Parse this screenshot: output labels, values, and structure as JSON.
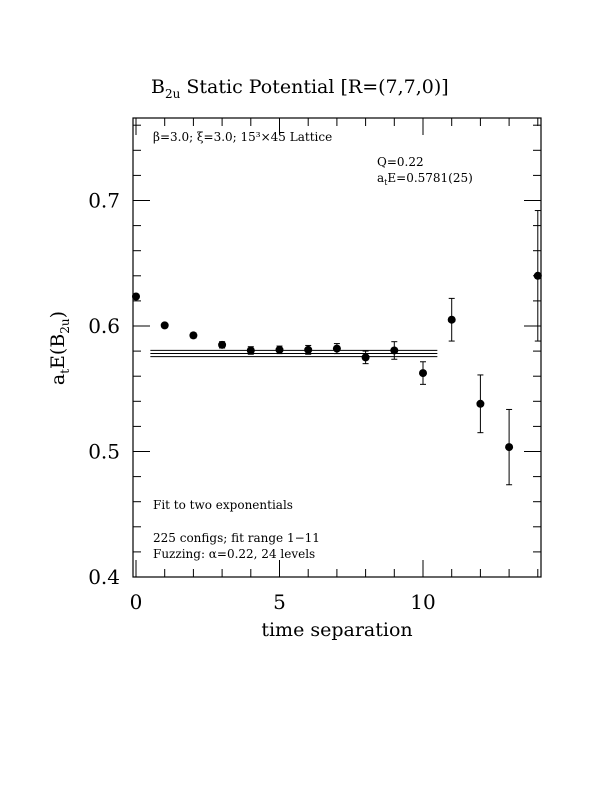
{
  "chart_data": {
    "type": "scatter",
    "title_main": "B",
    "title_sub": "2u",
    "title_rest": " Static Potential [R=(7,7,0)]",
    "xlabel": "time separation",
    "ylabel_main": "a",
    "ylabel_t": "t",
    "ylabel_mid": "E(B",
    "ylabel_sub": "2u",
    "ylabel_end": ")",
    "xlim": [
      0,
      14
    ],
    "ylim": [
      0.4,
      0.77
    ],
    "x_ticks": [
      {
        "value": 0,
        "label": "0"
      },
      {
        "value": 5,
        "label": "5"
      },
      {
        "value": 10,
        "label": "10"
      }
    ],
    "y_ticks": [
      {
        "value": 0.4,
        "label": "0.4"
      },
      {
        "value": 0.5,
        "label": "0.5"
      },
      {
        "value": 0.6,
        "label": "0.6"
      },
      {
        "value": 0.7,
        "label": "0.7"
      }
    ],
    "points": [
      {
        "x": 0,
        "y": 0.6235,
        "err": 0.0015
      },
      {
        "x": 1,
        "y": 0.6005,
        "err": 0.0015
      },
      {
        "x": 2,
        "y": 0.5925,
        "err": 0.002
      },
      {
        "x": 3,
        "y": 0.585,
        "err": 0.0025
      },
      {
        "x": 4,
        "y": 0.5805,
        "err": 0.003
      },
      {
        "x": 5,
        "y": 0.581,
        "err": 0.003
      },
      {
        "x": 6,
        "y": 0.581,
        "err": 0.0035
      },
      {
        "x": 7,
        "y": 0.582,
        "err": 0.004
      },
      {
        "x": 8,
        "y": 0.575,
        "err": 0.005
      },
      {
        "x": 9,
        "y": 0.5805,
        "err": 0.007
      },
      {
        "x": 10,
        "y": 0.5625,
        "err": 0.009
      },
      {
        "x": 11,
        "y": 0.605,
        "err": 0.017
      },
      {
        "x": 12,
        "y": 0.538,
        "err": 0.023
      },
      {
        "x": 13,
        "y": 0.5035,
        "err": 0.03
      },
      {
        "x": 14,
        "y": 0.64,
        "err": 0.052
      }
    ],
    "fit": {
      "value": 0.5781,
      "err": 0.0025,
      "x_start": 0.5,
      "x_end": 10.5
    },
    "annotations": {
      "lattice": "β=3.0; ξ=3.0; 15³×45 Lattice",
      "q": "Q=0.22",
      "ate_main": "a",
      "ate_sub": "t",
      "ate_rest": "E=0.5781(25)",
      "fit_type": "Fit to two exponentials",
      "configs": "225 configs; fit range 1−11",
      "fuzzing": "Fuzzing: α=0.22, 24 levels"
    }
  }
}
